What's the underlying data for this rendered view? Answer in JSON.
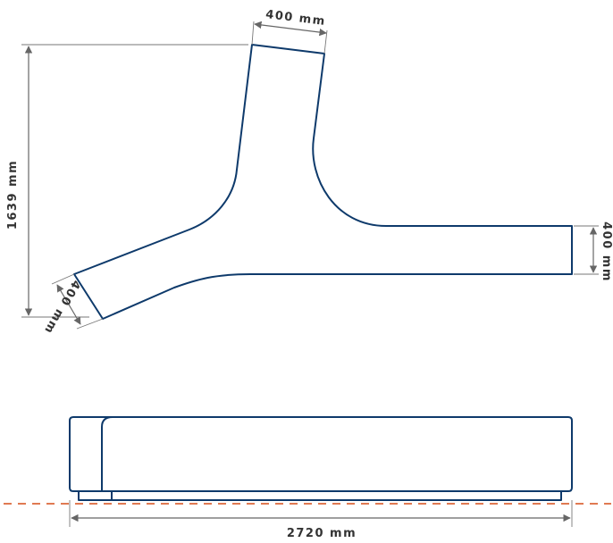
{
  "diagram": {
    "plan_view": {
      "width_top_arm": "400 mm",
      "width_right_arm": "400 mm",
      "width_left_arm": "400 mm",
      "total_height": "1639 mm"
    },
    "side_view": {
      "total_length": "2720 mm"
    },
    "colors": {
      "outline": "#0e3a6b",
      "dimension": "#666666",
      "ground_line": "#e07a52"
    }
  }
}
